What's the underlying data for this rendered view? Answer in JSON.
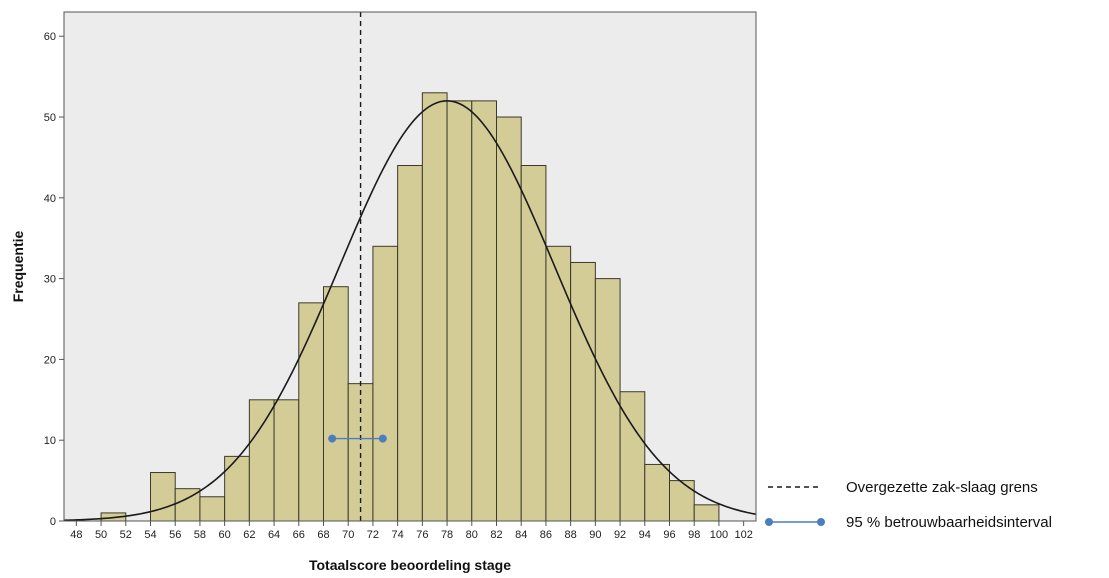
{
  "chart_data": {
    "type": "bar",
    "xlabel": "Totaalscore beoordeling stage",
    "ylabel": "Frequentie",
    "xlim": [
      47,
      103
    ],
    "ylim": [
      0,
      63
    ],
    "x_ticks": [
      48,
      50,
      52,
      54,
      56,
      58,
      60,
      62,
      64,
      66,
      68,
      70,
      72,
      74,
      76,
      78,
      80,
      82,
      84,
      86,
      88,
      90,
      92,
      94,
      96,
      98,
      100,
      102
    ],
    "y_ticks": [
      0,
      10,
      20,
      30,
      40,
      50,
      60
    ],
    "bin_width": 2,
    "bins": [
      {
        "start": 50,
        "value": 1
      },
      {
        "start": 54,
        "value": 6
      },
      {
        "start": 56,
        "value": 4
      },
      {
        "start": 58,
        "value": 3
      },
      {
        "start": 60,
        "value": 8
      },
      {
        "start": 62,
        "value": 15
      },
      {
        "start": 64,
        "value": 15
      },
      {
        "start": 66,
        "value": 27
      },
      {
        "start": 68,
        "value": 29
      },
      {
        "start": 70,
        "value": 17
      },
      {
        "start": 72,
        "value": 34
      },
      {
        "start": 74,
        "value": 44
      },
      {
        "start": 76,
        "value": 53
      },
      {
        "start": 78,
        "value": 52
      },
      {
        "start": 80,
        "value": 52
      },
      {
        "start": 82,
        "value": 50
      },
      {
        "start": 84,
        "value": 44
      },
      {
        "start": 86,
        "value": 34
      },
      {
        "start": 88,
        "value": 32
      },
      {
        "start": 90,
        "value": 30
      },
      {
        "start": 92,
        "value": 16
      },
      {
        "start": 94,
        "value": 7
      },
      {
        "start": 96,
        "value": 5
      },
      {
        "start": 98,
        "value": 2
      }
    ],
    "normal_curve": {
      "mean": 78,
      "sd": 8.7,
      "peak": 52
    },
    "cutoff": {
      "x": 71,
      "label": "Overgezette zak-slaag grens"
    },
    "confidence_interval": {
      "low": 68.7,
      "high": 72.8,
      "y": 10.2,
      "label": "95 % betrouwbaarheidsinterval"
    },
    "grid": false,
    "legend_position": "bottom-right",
    "colors": {
      "bar_fill": "#d4cc96",
      "bar_stroke": "#3a3a2a",
      "plot_background": "#ececec",
      "curve": "#1a1a1a",
      "cutoff_line": "#1a1a1a",
      "interval": "#4a7ebf"
    }
  }
}
